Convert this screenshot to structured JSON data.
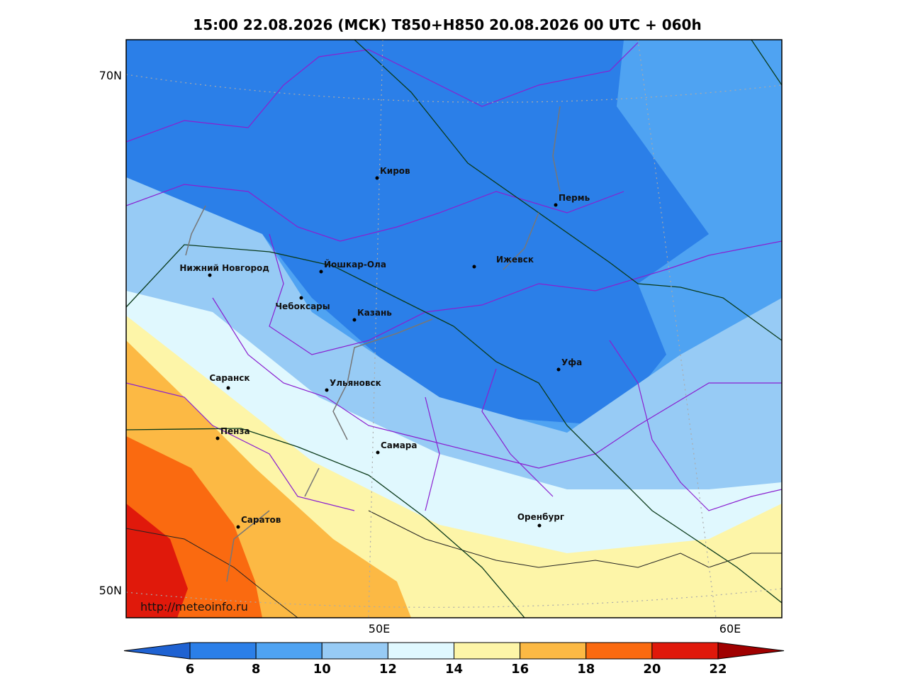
{
  "header": {
    "title": "15:00 22.08.2026 (МСК) T850+H850 20.08.2026 00 UTC + 060h"
  },
  "map": {
    "lat_labels": [
      "70N",
      "50N"
    ],
    "lon_labels": [
      "50E",
      "60E"
    ],
    "cities": [
      "Киров",
      "Пермь",
      "Нижний Новгород",
      "Йошкар-Ола",
      "Ижевск",
      "Чебоксары",
      "Казань",
      "Уфа",
      "Саранск",
      "Ульяновск",
      "Пенза",
      "Самара",
      "Оренбург",
      "Саратов"
    ],
    "source": "http://meteoinfo.ru"
  },
  "colorbar": {
    "ticks": [
      6,
      8,
      10,
      12,
      14,
      16,
      18,
      20,
      22
    ],
    "colors": [
      "#1f62d2",
      "#2b7fe8",
      "#4fa3f2",
      "#97cbf5",
      "#e0f8fe",
      "#fdf5a8",
      "#fcb944",
      "#fa6a10",
      "#e0190b",
      "#a00000"
    ]
  }
}
